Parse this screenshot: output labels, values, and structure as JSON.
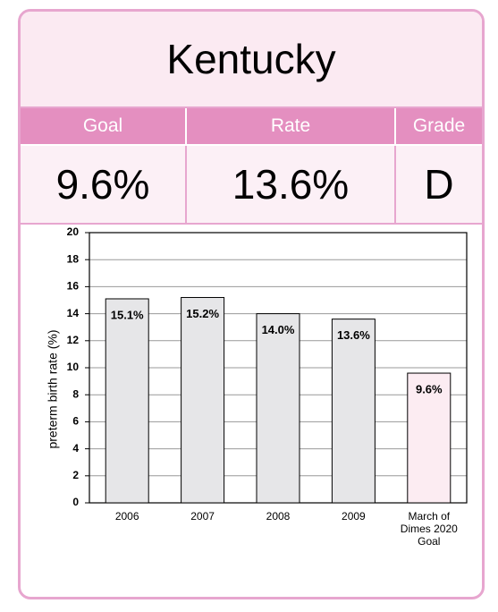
{
  "header": {
    "title": "Kentucky"
  },
  "table": {
    "columns": [
      "Goal",
      "Rate",
      "Grade"
    ],
    "rows": [
      [
        "9.6%",
        "13.6%",
        "D"
      ]
    ]
  },
  "chart_data": {
    "type": "bar",
    "ylabel": "preterm birth rate (%)",
    "categories": [
      "2006",
      "2007",
      "2008",
      "2009",
      "March of Dimes 2020 Goal"
    ],
    "values": [
      15.1,
      15.2,
      14.0,
      13.6,
      9.6
    ],
    "value_labels": [
      "15.1%",
      "15.2%",
      "14.0%",
      "13.6%",
      "9.6%"
    ],
    "colors": [
      "#e6e6e8",
      "#e6e6e8",
      "#e6e6e8",
      "#e6e6e8",
      "#fcecf2"
    ],
    "ylim": [
      0,
      20
    ],
    "yticks": [
      0,
      2,
      4,
      6,
      8,
      10,
      12,
      14,
      16,
      18,
      20
    ],
    "grid": true
  }
}
